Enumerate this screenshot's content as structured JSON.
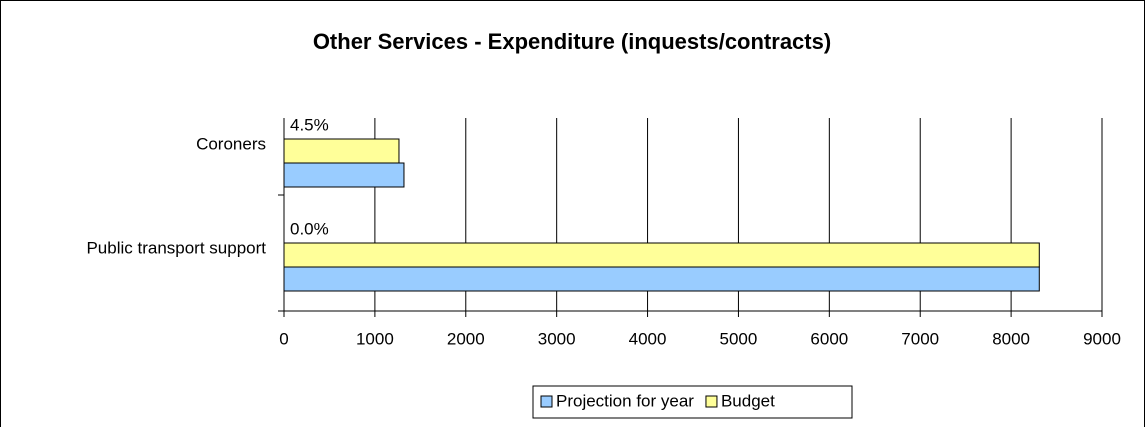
{
  "chart_data": {
    "type": "hbar",
    "title": "Other Services - Expenditure (inquests/contracts)",
    "categories": [
      "Coroners",
      "Public transport support"
    ],
    "series": [
      {
        "name": "Projection for year",
        "color": "#99ccff",
        "values": [
          1320,
          8310
        ]
      },
      {
        "name": "Budget",
        "color": "#ffff99",
        "values": [
          1265,
          8310
        ]
      }
    ],
    "annotations": [
      "4.5%",
      "0.0%"
    ],
    "xlim": [
      0,
      9000
    ],
    "xticks": [
      0,
      1000,
      2000,
      3000,
      4000,
      5000,
      6000,
      7000,
      8000,
      9000
    ],
    "grid": true,
    "legend": "bottom"
  }
}
